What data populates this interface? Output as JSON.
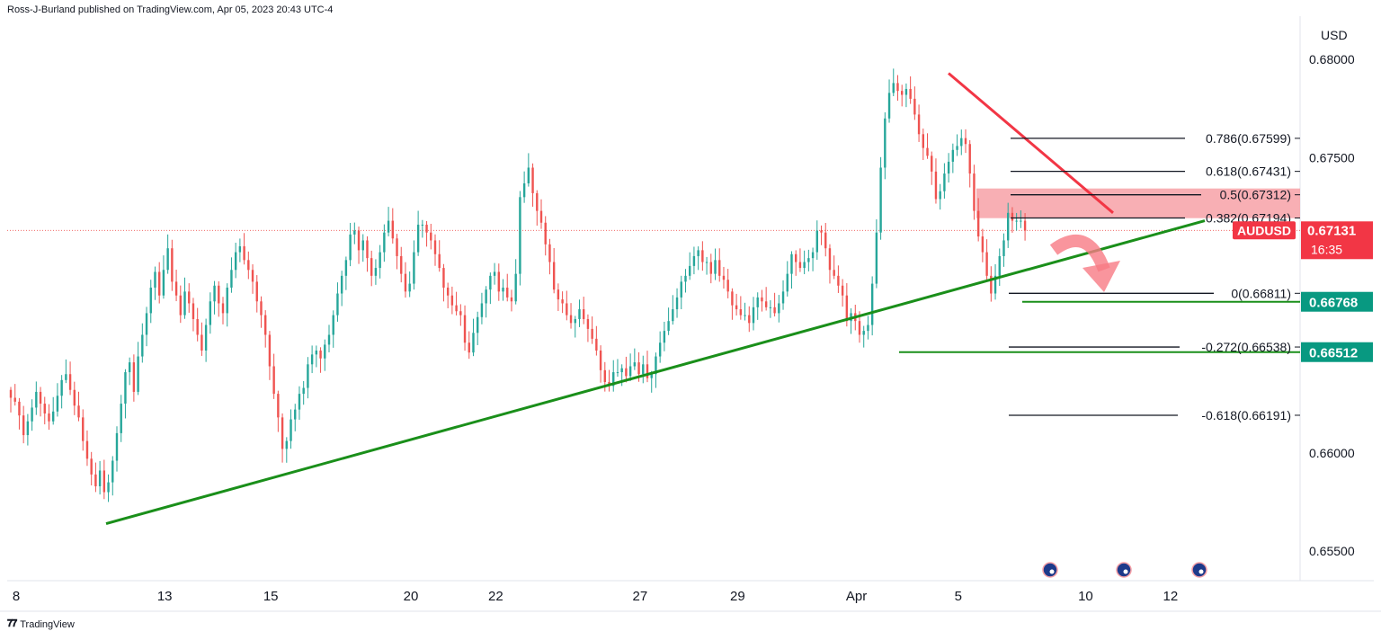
{
  "header": {
    "published_text": "Ross-J-Burland published on TradingView.com, Apr 05, 2023 20:43 UTC-4"
  },
  "footer": {
    "brand": "TradingView"
  },
  "colors": {
    "up": "#26a69a",
    "down": "#ef5350",
    "trendline": "#1a8f1a",
    "resistance_line": "#f23645",
    "zone": "#f7a1a7",
    "label_green": "#089981",
    "label_red": "#f23645"
  },
  "chart_data": {
    "type": "candlestick",
    "symbol": "AUDUSD",
    "currency_label": "USD",
    "y_range": [
      0.6535,
      0.6822
    ],
    "y_ticks": [
      {
        "value": 0.68,
        "label": "0.68000"
      },
      {
        "value": 0.675,
        "label": "0.67500"
      },
      {
        "value": 0.66,
        "label": "0.66000"
      },
      {
        "value": 0.655,
        "label": "0.65500"
      }
    ],
    "x_ticks": [
      {
        "index": 0,
        "label": "8"
      },
      {
        "index": 35,
        "label": "13"
      },
      {
        "index": 60,
        "label": "15"
      },
      {
        "index": 93,
        "label": "20"
      },
      {
        "index": 113,
        "label": "22"
      },
      {
        "index": 147,
        "label": "27"
      },
      {
        "index": 170,
        "label": "29"
      },
      {
        "index": 198,
        "label": "Apr"
      },
      {
        "index": 222,
        "label": "5"
      },
      {
        "index": 252,
        "label": "10"
      },
      {
        "index": 272,
        "label": "12"
      }
    ],
    "bars_total": 285,
    "close_series": [
      0.6628,
      0.6626,
      0.6619,
      0.6609,
      0.6616,
      0.6623,
      0.6631,
      0.6625,
      0.662,
      0.6616,
      0.6621,
      0.6629,
      0.6637,
      0.664,
      0.6632,
      0.6624,
      0.6618,
      0.6606,
      0.6597,
      0.6589,
      0.6583,
      0.6591,
      0.658,
      0.6585,
      0.6596,
      0.661,
      0.6625,
      0.6641,
      0.6646,
      0.6631,
      0.6649,
      0.666,
      0.6671,
      0.6684,
      0.6692,
      0.668,
      0.6693,
      0.6704,
      0.6687,
      0.668,
      0.667,
      0.6682,
      0.6676,
      0.6668,
      0.666,
      0.6652,
      0.6665,
      0.6677,
      0.6685,
      0.6676,
      0.6671,
      0.6684,
      0.6693,
      0.6702,
      0.6705,
      0.6698,
      0.6693,
      0.6687,
      0.6677,
      0.667,
      0.666,
      0.6644,
      0.663,
      0.6618,
      0.6602,
      0.6606,
      0.6617,
      0.6622,
      0.663,
      0.6633,
      0.6645,
      0.665,
      0.6652,
      0.6648,
      0.6655,
      0.666,
      0.667,
      0.6681,
      0.669,
      0.6698,
      0.6711,
      0.6713,
      0.6703,
      0.6708,
      0.6699,
      0.669,
      0.6694,
      0.6702,
      0.6712,
      0.6718,
      0.6709,
      0.67,
      0.6691,
      0.6682,
      0.6686,
      0.6702,
      0.6716,
      0.6716,
      0.6712,
      0.6708,
      0.6701,
      0.6694,
      0.6684,
      0.668,
      0.6675,
      0.6672,
      0.667,
      0.6656,
      0.6651,
      0.6661,
      0.6669,
      0.6676,
      0.6683,
      0.669,
      0.6692,
      0.6682,
      0.6684,
      0.6679,
      0.6677,
      0.6691,
      0.673,
      0.6737,
      0.6745,
      0.6732,
      0.6723,
      0.6717,
      0.6706,
      0.6697,
      0.6683,
      0.6678,
      0.6676,
      0.667,
      0.6666,
      0.6668,
      0.6673,
      0.6668,
      0.6663,
      0.6658,
      0.6652,
      0.6642,
      0.6636,
      0.6634,
      0.6641,
      0.6641,
      0.6643,
      0.6639,
      0.6644,
      0.6646,
      0.664,
      0.6645,
      0.6638,
      0.664,
      0.6649,
      0.6656,
      0.6662,
      0.6667,
      0.6673,
      0.6679,
      0.6687,
      0.669,
      0.6695,
      0.67,
      0.6703,
      0.6697,
      0.6697,
      0.6691,
      0.6698,
      0.669,
      0.6688,
      0.6682,
      0.6675,
      0.6673,
      0.667,
      0.667,
      0.6666,
      0.6674,
      0.6679,
      0.6677,
      0.6674,
      0.6674,
      0.6671,
      0.6676,
      0.6682,
      0.6691,
      0.6701,
      0.6697,
      0.6694,
      0.6697,
      0.6699,
      0.6702,
      0.6713,
      0.6712,
      0.6704,
      0.6693,
      0.669,
      0.6685,
      0.668,
      0.6667,
      0.6671,
      0.6667,
      0.666,
      0.6662,
      0.6665,
      0.6686,
      0.6712,
      0.6745,
      0.677,
      0.6783,
      0.6788,
      0.6784,
      0.6782,
      0.6785,
      0.678,
      0.6772,
      0.6762,
      0.6755,
      0.6751,
      0.6743,
      0.6729,
      0.6733,
      0.6742,
      0.6748,
      0.6754,
      0.6756,
      0.676,
      0.6757,
      0.6742,
      0.6723,
      0.671,
      0.6702,
      0.669,
      0.6681,
      0.669,
      0.67,
      0.6708,
      0.6722,
      0.6718,
      0.6718,
      0.6718,
      0.6713
    ]
  },
  "annotations": {
    "fib_levels": [
      {
        "label": "0.786(0.67599)",
        "price": 0.67599
      },
      {
        "label": "0.618(0.67431)",
        "price": 0.67431
      },
      {
        "label": "0.5(0.67312)",
        "price": 0.67312
      },
      {
        "label": "0.382(0.67194)",
        "price": 0.67194
      },
      {
        "label": "0(0.66811)",
        "price": 0.66811
      },
      {
        "label": "-0.272(0.66538)",
        "price": 0.66538
      },
      {
        "label": "-0.618(0.66191)",
        "price": 0.66191
      }
    ],
    "price_labels": [
      {
        "text": "AUDUSD",
        "price": 0.67131,
        "color": "#f23645"
      },
      {
        "text": "0.67131",
        "sub": "16:35",
        "price": 0.67131,
        "color": "#f23645"
      },
      {
        "text": "0.66768",
        "price": 0.66768,
        "color": "#089981"
      },
      {
        "text": "0.66512",
        "price": 0.66512,
        "color": "#089981"
      }
    ],
    "support_levels": [
      0.66768,
      0.66512
    ],
    "event_icons": [
      "au-flag-icon",
      "us-flag-icon",
      "au-flag-icon"
    ]
  }
}
